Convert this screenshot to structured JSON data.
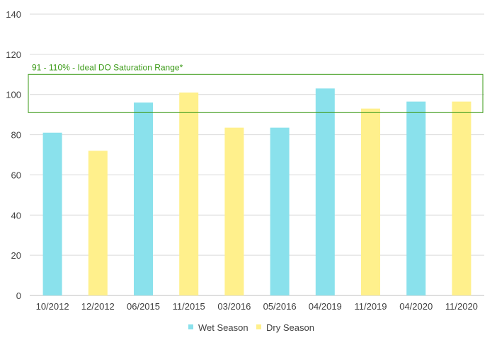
{
  "chart_data": {
    "type": "bar",
    "title": "",
    "xlabel": "",
    "ylabel": "",
    "ylim": [
      0,
      140
    ],
    "yticks": [
      0,
      20,
      40,
      60,
      80,
      100,
      120,
      140
    ],
    "grid": true,
    "legend_position": "bottom",
    "categories": [
      "10/2012",
      "12/2012",
      "06/2015",
      "11/2015",
      "03/2016",
      "05/2016",
      "04/2019",
      "11/2019",
      "04/2020",
      "11/2020"
    ],
    "values": [
      81,
      72,
      96,
      101,
      83.5,
      83.5,
      103,
      93,
      96.5,
      96.5
    ],
    "season": [
      "wet",
      "dry",
      "wet",
      "dry",
      "dry",
      "wet",
      "wet",
      "dry",
      "wet",
      "dry"
    ],
    "series": [
      {
        "key": "wet",
        "name": "Wet Season",
        "color": "#8ae1ec"
      },
      {
        "key": "dry",
        "name": "Dry Season",
        "color": "#fff08c"
      }
    ],
    "annotation": {
      "label": "91 - 110% - Ideal DO Saturation Range*",
      "y_range": [
        91,
        110
      ],
      "color": "#3a9a16"
    }
  }
}
